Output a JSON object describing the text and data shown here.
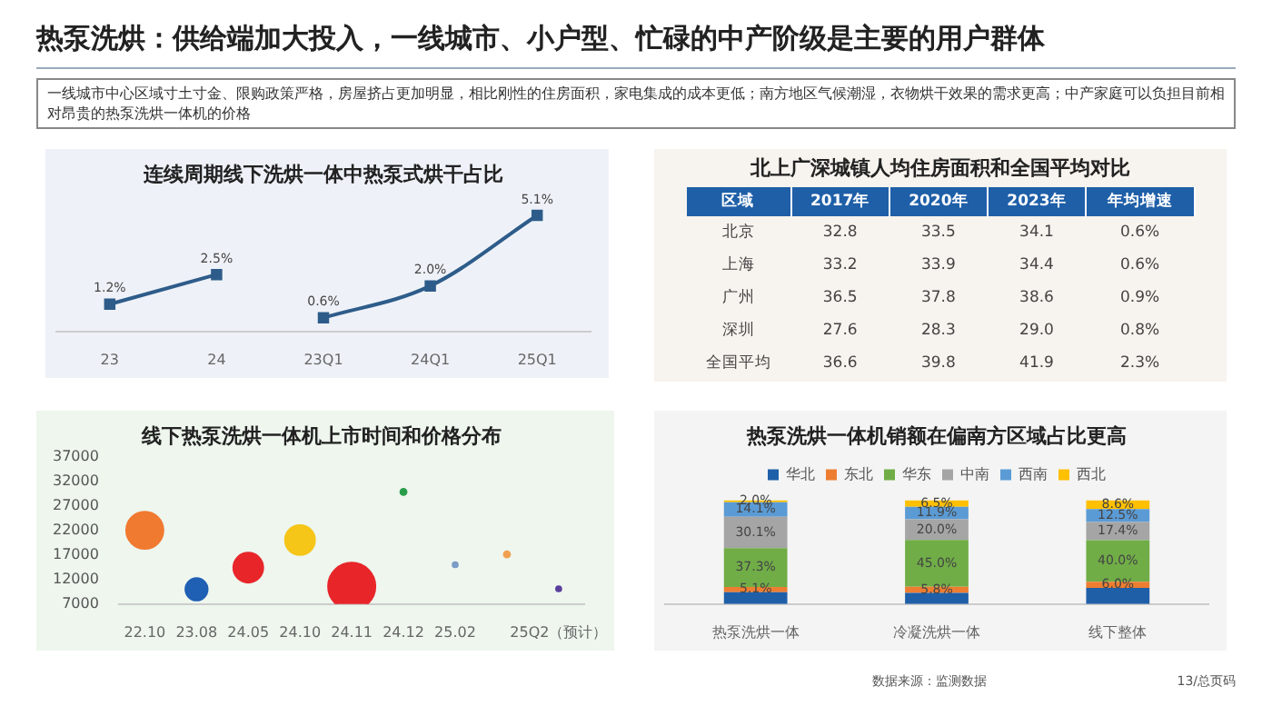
{
  "chart_data": [
    {
      "type": "other",
      "title": "热泵洗烘：供给端加大投入，一线城市、小户型、忙碌的中产阶级是主要的用户群体",
      "subtitle": "一线城市中心区域寸土寸金、限购政策严格，房屋挤占更加明显，相比刚性的住房面积，家电集成的成本更低；南方地区气候潮湿，衣物烘干效果的需求更高；中产家庭可以负担目前相对昂贵的热泵洗烘一体机的价格",
      "annotations": [
        "数据来源：监测数据",
        "13/总页码"
      ]
    },
    {
      "type": "line",
      "title": "连续周期线下洗烘一体中热泵式烘干占比",
      "categories": [
        "23",
        "24",
        "23Q1",
        "24Q1",
        "25Q1"
      ],
      "marker": "square",
      "line_style": "solid",
      "series": [
        {
          "color": "#2e5c8a",
          "values": [
            1.2,
            2.5,
            null,
            null,
            null
          ],
          "value_labels": [
            "1.2%",
            "2.5%",
            null,
            null,
            null
          ]
        },
        {
          "color": "#2e5c8a",
          "values": [
            null,
            null,
            0.6,
            2.0,
            5.1
          ],
          "value_labels": [
            null,
            null,
            "0.6%",
            "2.0%",
            "5.1%"
          ]
        }
      ]
    },
    {
      "type": "other",
      "title": "北上广深城镇人均住房面积和全国平均对比",
      "categories": [
        "区域",
        "2017年",
        "2020年",
        "2023年",
        "年均增速"
      ],
      "y_categories": [
        "北京",
        "上海",
        "广州",
        "深圳",
        "全国平均"
      ],
      "cell_labels": [
        [
          "32.8",
          "33.5",
          "34.1",
          "0.6%"
        ],
        [
          "33.2",
          "33.9",
          "34.4",
          "0.6%"
        ],
        [
          "36.5",
          "37.8",
          "38.6",
          "0.9%"
        ],
        [
          "27.6",
          "28.3",
          "29.0",
          "0.8%"
        ],
        [
          "36.6",
          "39.8",
          "41.9",
          "2.3%"
        ]
      ]
    },
    {
      "type": "bubble",
      "title": "线下热泵洗烘一体机上市时间和价格分布",
      "categories": [
        "22.10",
        "23.08",
        "24.05",
        "24.10",
        "24.11",
        "24.12",
        "25.02",
        null,
        "25Q2（预计）"
      ],
      "values": [
        22000,
        10000,
        14400,
        20000,
        10600,
        29800,
        15000,
        17100,
        10100
      ],
      "sizes": [
        0.62,
        0.22,
        0.4,
        0.4,
        1,
        0.017,
        0.012,
        0.017,
        0.012
      ],
      "colors": [
        "#f07a30",
        "#1f5fb4",
        "#e8262a",
        "#f5c518",
        "#e8262a",
        "#2a9d4a",
        "#7a9cc6",
        "#f0a050",
        "#5a3f9a"
      ],
      "ylim": [
        7000,
        37000
      ],
      "yticks": [
        7000,
        12000,
        17000,
        22000,
        27000,
        32000,
        37000
      ]
    },
    {
      "type": "bar",
      "stacked": true,
      "title": "热泵洗烘一体机销额在偏南方区域占比更高",
      "legend": "top",
      "categories": [
        "热泵洗烘一体",
        "冷凝洗烘一体",
        "线下整体"
      ],
      "series": [
        {
          "name": "华北",
          "color": "#1f5fa8",
          "values": [
            11.4,
            10.8,
            15.5
          ],
          "value_labels": [
            null,
            null,
            null
          ]
        },
        {
          "name": "东北",
          "color": "#ed7d31",
          "values": [
            5.1,
            5.8,
            6.0
          ],
          "value_labels": [
            "5.1%",
            "5.8%",
            "6.0%"
          ]
        },
        {
          "name": "华东",
          "color": "#70ad47",
          "values": [
            37.3,
            45.0,
            40.0
          ],
          "value_labels": [
            "37.3%",
            "45.0%",
            "40.0%"
          ]
        },
        {
          "name": "中南",
          "color": "#a5a5a5",
          "values": [
            30.1,
            20.0,
            17.4
          ],
          "value_labels": [
            "30.1%",
            "20.0%",
            "17.4%"
          ]
        },
        {
          "name": "西南",
          "color": "#5b9bd5",
          "values": [
            14.1,
            11.9,
            12.5
          ],
          "value_labels": [
            "14.1%",
            "11.9%",
            "12.5%"
          ]
        },
        {
          "name": "西北",
          "color": "#ffc000",
          "values": [
            2.0,
            6.5,
            8.6
          ],
          "value_labels": [
            "2.0%",
            "6.5%",
            "8.6%"
          ]
        }
      ]
    }
  ]
}
